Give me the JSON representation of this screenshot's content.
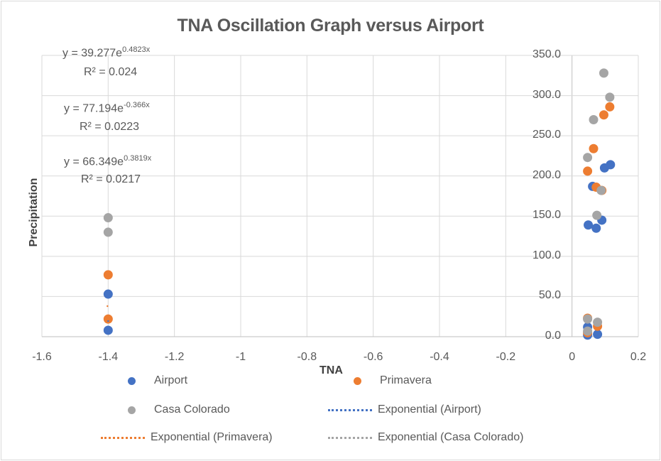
{
  "chart_data": {
    "type": "scatter",
    "title": "TNA Oscillation Graph versus Airport",
    "xlabel": "TNA",
    "ylabel": "Precipitation",
    "xlim": [
      -1.6,
      0.2
    ],
    "ylim": [
      0,
      350
    ],
    "x_ticks": [
      "-1.6",
      "-1.4",
      "-1.2",
      "-1",
      "-0.8",
      "-0.6",
      "-0.4",
      "-0.2",
      "0",
      "0.2"
    ],
    "y_ticks": [
      "0.0",
      "50.0",
      "100.0",
      "150.0",
      "200.0",
      "250.0",
      "300.0",
      "350.0"
    ],
    "grid": true,
    "legend_position": "bottom",
    "series": [
      {
        "name": "Airport",
        "color": "#4472c4",
        "points": [
          [
            -1.4,
            53
          ],
          [
            -1.4,
            8
          ],
          [
            0.098,
            210
          ],
          [
            0.116,
            214
          ],
          [
            0.062,
            187
          ],
          [
            0.049,
            139
          ],
          [
            0.09,
            145
          ],
          [
            0.073,
            135
          ],
          [
            0.047,
            12
          ],
          [
            0.077,
            3
          ],
          [
            0.047,
            2
          ]
        ]
      },
      {
        "name": "Primavera",
        "color": "#ed7d31",
        "points": [
          [
            -1.4,
            77
          ],
          [
            -1.4,
            22
          ],
          [
            0.096,
            276
          ],
          [
            0.114,
            286
          ],
          [
            0.065,
            234
          ],
          [
            0.047,
            206
          ],
          [
            0.073,
            186
          ],
          [
            0.09,
            182
          ],
          [
            0.047,
            23
          ],
          [
            0.077,
            13
          ],
          [
            0.047,
            5
          ]
        ]
      },
      {
        "name": "Casa Colorado",
        "color": "#a5a5a5",
        "points": [
          [
            -1.4,
            148
          ],
          [
            -1.4,
            130
          ],
          [
            0.096,
            328
          ],
          [
            0.114,
            298
          ],
          [
            0.065,
            270
          ],
          [
            0.047,
            223
          ],
          [
            0.088,
            182
          ],
          [
            0.075,
            151
          ],
          [
            0.047,
            22
          ],
          [
            0.077,
            18
          ],
          [
            0.047,
            7
          ]
        ]
      }
    ],
    "trendlines": [
      {
        "name": "Exponential (Airport)",
        "color": "#4472c4",
        "equation": "y = 39.277e",
        "exponent": "0.4823x",
        "r2": "R² = 0.024",
        "a": 39.277,
        "b": 0.4823
      },
      {
        "name": "Exponential (Primavera)",
        "color": "#ed7d31",
        "equation": "y = 77.194e",
        "exponent": "-0.366x",
        "r2": "R² = 0.0223",
        "a": 77.194,
        "b": -0.366
      },
      {
        "name": "Exponential (Casa Colorado)",
        "color": "#a5a5a5",
        "equation": "y = 66.349e",
        "exponent": "0.3819x",
        "r2": "R² = 0.0217",
        "a": 66.349,
        "b": 0.3819
      }
    ]
  },
  "legend": {
    "airport": "Airport",
    "primavera": "Primavera",
    "casa": "Casa Colorado",
    "exp_airport": "Exponential (Airport)",
    "exp_primavera": "Exponential (Primavera)",
    "exp_casa": "Exponential (Casa Colorado)"
  }
}
